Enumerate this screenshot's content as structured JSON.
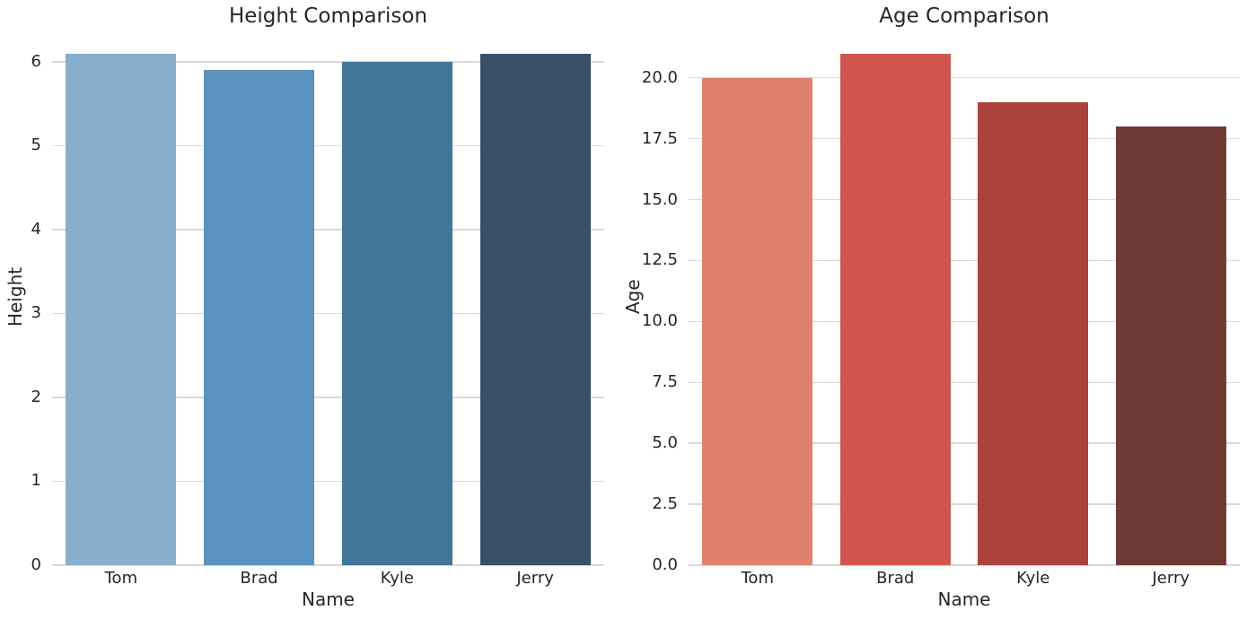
{
  "figure": {
    "background": "#ffffff",
    "text_color": "#262626",
    "grid_color": "#d9d9d9"
  },
  "chart_data": [
    {
      "type": "bar",
      "title": "Height Comparison",
      "xlabel": "Name",
      "ylabel": "Height",
      "categories": [
        "Tom",
        "Brad",
        "Kyle",
        "Jerry"
      ],
      "values": [
        6.1,
        5.9,
        6.0,
        6.1
      ],
      "bar_colors": [
        "#87aecd",
        "#5b92bd",
        "#42769a",
        "#3a5066"
      ],
      "ytick_values": [
        0,
        1,
        2,
        3,
        4,
        5,
        6
      ],
      "ytick_labels": [
        "0",
        "1",
        "2",
        "3",
        "4",
        "5",
        "6"
      ],
      "ylim": [
        0,
        6.405
      ],
      "grid": "horizontal",
      "legend": "none"
    },
    {
      "type": "bar",
      "title": "Age Comparison",
      "xlabel": "Name",
      "ylabel": "Age",
      "categories": [
        "Tom",
        "Brad",
        "Kyle",
        "Jerry"
      ],
      "values": [
        20,
        21,
        19,
        18
      ],
      "bar_colors": [
        "#e0816f",
        "#d1554e",
        "#ab423d",
        "#6f3a36"
      ],
      "ytick_values": [
        0,
        2.5,
        5,
        7.5,
        10,
        12.5,
        15,
        17.5,
        20
      ],
      "ytick_labels": [
        "0.0",
        "2.5",
        "5.0",
        "7.5",
        "10.0",
        "12.5",
        "15.0",
        "17.5",
        "20.0"
      ],
      "ylim": [
        0,
        22.05
      ],
      "grid": "horizontal",
      "legend": "none"
    }
  ]
}
